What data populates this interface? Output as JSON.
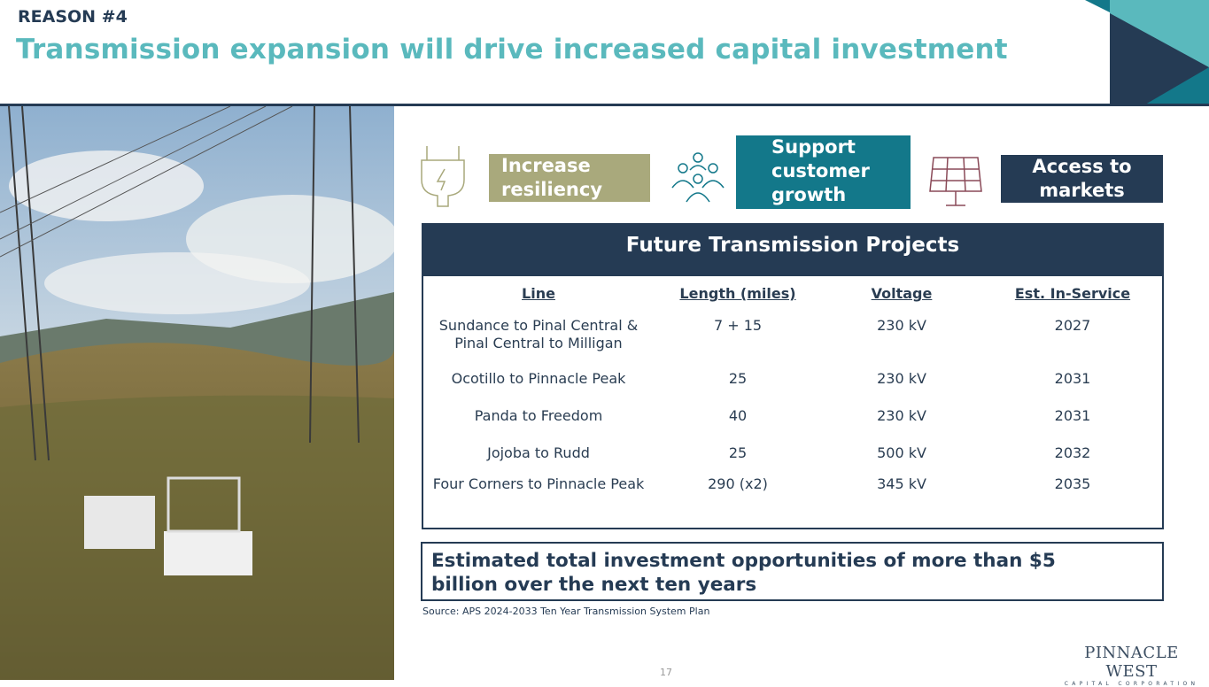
{
  "header": {
    "eyebrow": "REASON #4",
    "title": "Transmission expansion will drive increased capital investment"
  },
  "pillars": [
    {
      "icon": "plug-lightning-icon",
      "label": "Increase resiliency",
      "color": "#a9a97c"
    },
    {
      "icon": "people-group-icon",
      "label": "Support customer growth",
      "color": "#13788a"
    },
    {
      "icon": "solar-panel-icon",
      "label": "Access to markets",
      "color": "#253b54"
    }
  ],
  "table": {
    "title": "Future Transmission Projects",
    "columns": [
      "Line",
      "Length (miles)",
      "Voltage",
      "Est. In-Service"
    ],
    "rows": [
      [
        "Sundance to Pinal Central & Pinal Central to Milligan",
        "7 + 15",
        "230 kV",
        "2027"
      ],
      [
        "Ocotillo to Pinnacle Peak",
        "25",
        "230 kV",
        "2031"
      ],
      [
        "Panda to Freedom",
        "40",
        "230 kV",
        "2031"
      ],
      [
        "Jojoba to Rudd",
        "25",
        "500 kV",
        "2032"
      ],
      [
        "Four Corners to Pinnacle Peak",
        "290 (x2)",
        "345 kV",
        "2035"
      ]
    ]
  },
  "callout": "Estimated total investment opportunities of more than $5 billion over the next ten years",
  "source": "Source: APS 2024-2033 Ten Year Transmission System Plan",
  "page_number": "17",
  "logo": {
    "name": "PINNACLE WEST",
    "sub": "CAPITAL CORPORATION"
  },
  "colors": {
    "navy": "#253b54",
    "teal": "#5ab9bd",
    "dark_teal": "#13788a",
    "olive": "#a9a97c"
  }
}
